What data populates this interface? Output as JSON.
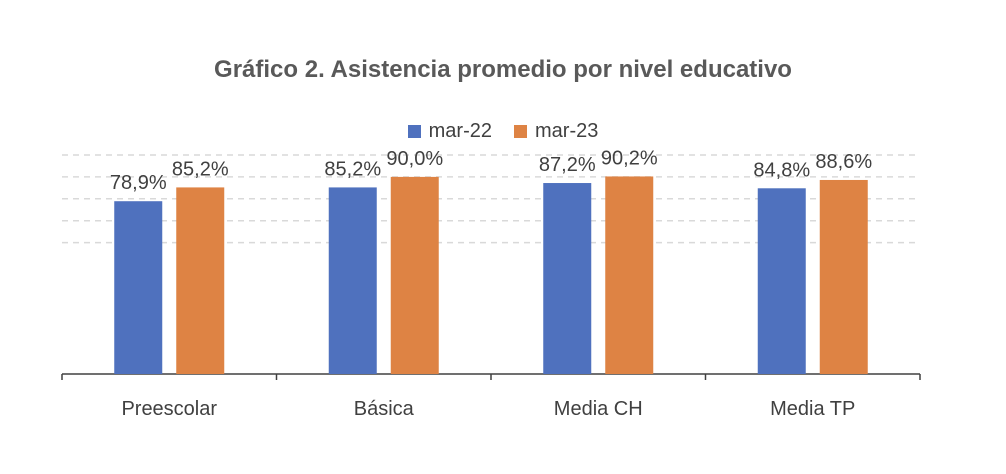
{
  "chart_data": {
    "type": "bar",
    "title": "Gráfico 2. Asistencia promedio por nivel educativo",
    "categories": [
      "Preescolar",
      "Básica",
      "Media CH",
      "Media TP"
    ],
    "series": [
      {
        "name": "mar-22",
        "color": "#4F71BE",
        "values": [
          78.9,
          85.2,
          87.2,
          84.8
        ],
        "labels": [
          "78,9%",
          "85,2%",
          "87,2%",
          "84,8%"
        ]
      },
      {
        "name": "mar-23",
        "color": "#DE8344",
        "values": [
          85.2,
          90.0,
          90.2,
          88.6
        ],
        "labels": [
          "85,2%",
          "90,0%",
          "90,2%",
          "88,6%"
        ]
      }
    ],
    "ylim": [
      0,
      100
    ],
    "grid": true,
    "gridline_color": "#D9D9D9",
    "legend_position": "top"
  }
}
